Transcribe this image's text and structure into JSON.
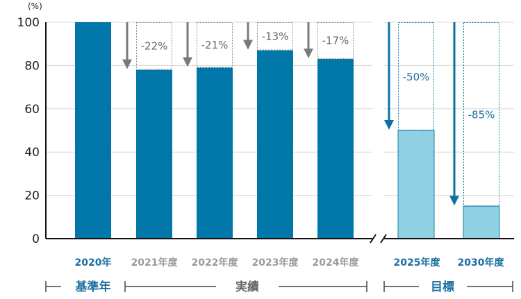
{
  "chart_data": {
    "type": "bar",
    "unit_label": "(%)",
    "ylim": [
      0,
      100
    ],
    "y_ticks": [
      0,
      20,
      40,
      60,
      80,
      100
    ],
    "grid": true,
    "categories": [
      "2020年",
      "2021年度",
      "2022年度",
      "2023年度",
      "2024年度",
      "2025年度",
      "2030年度"
    ],
    "values": [
      100,
      78,
      79,
      87,
      83,
      50,
      15
    ],
    "reductions": [
      "",
      "-22",
      "-21",
      "-13",
      "-17",
      "-50",
      "-85"
    ],
    "percent_sign": "%",
    "bar_kinds": [
      "base",
      "actual",
      "actual",
      "actual",
      "actual",
      "target",
      "target"
    ],
    "groups": [
      {
        "label": "基準年",
        "kind": "base"
      },
      {
        "label": "実績",
        "kind": "actual"
      },
      {
        "label": "目標",
        "kind": "target"
      }
    ],
    "colors": {
      "base_bar": "#0077a8",
      "actual_bar": "#0077a8",
      "target_bar": "#8fd1e3",
      "target_edge": "#1a7fa8",
      "actual_arrow": "#7a7a7a",
      "target_arrow": "#0a72a3",
      "base_label": "#1a6fa0",
      "actual_label": "#9a9a9a",
      "target_label": "#1a6fa0",
      "grid": "#d8d8d8",
      "axis": "#111111",
      "group_line": "#444444"
    }
  }
}
